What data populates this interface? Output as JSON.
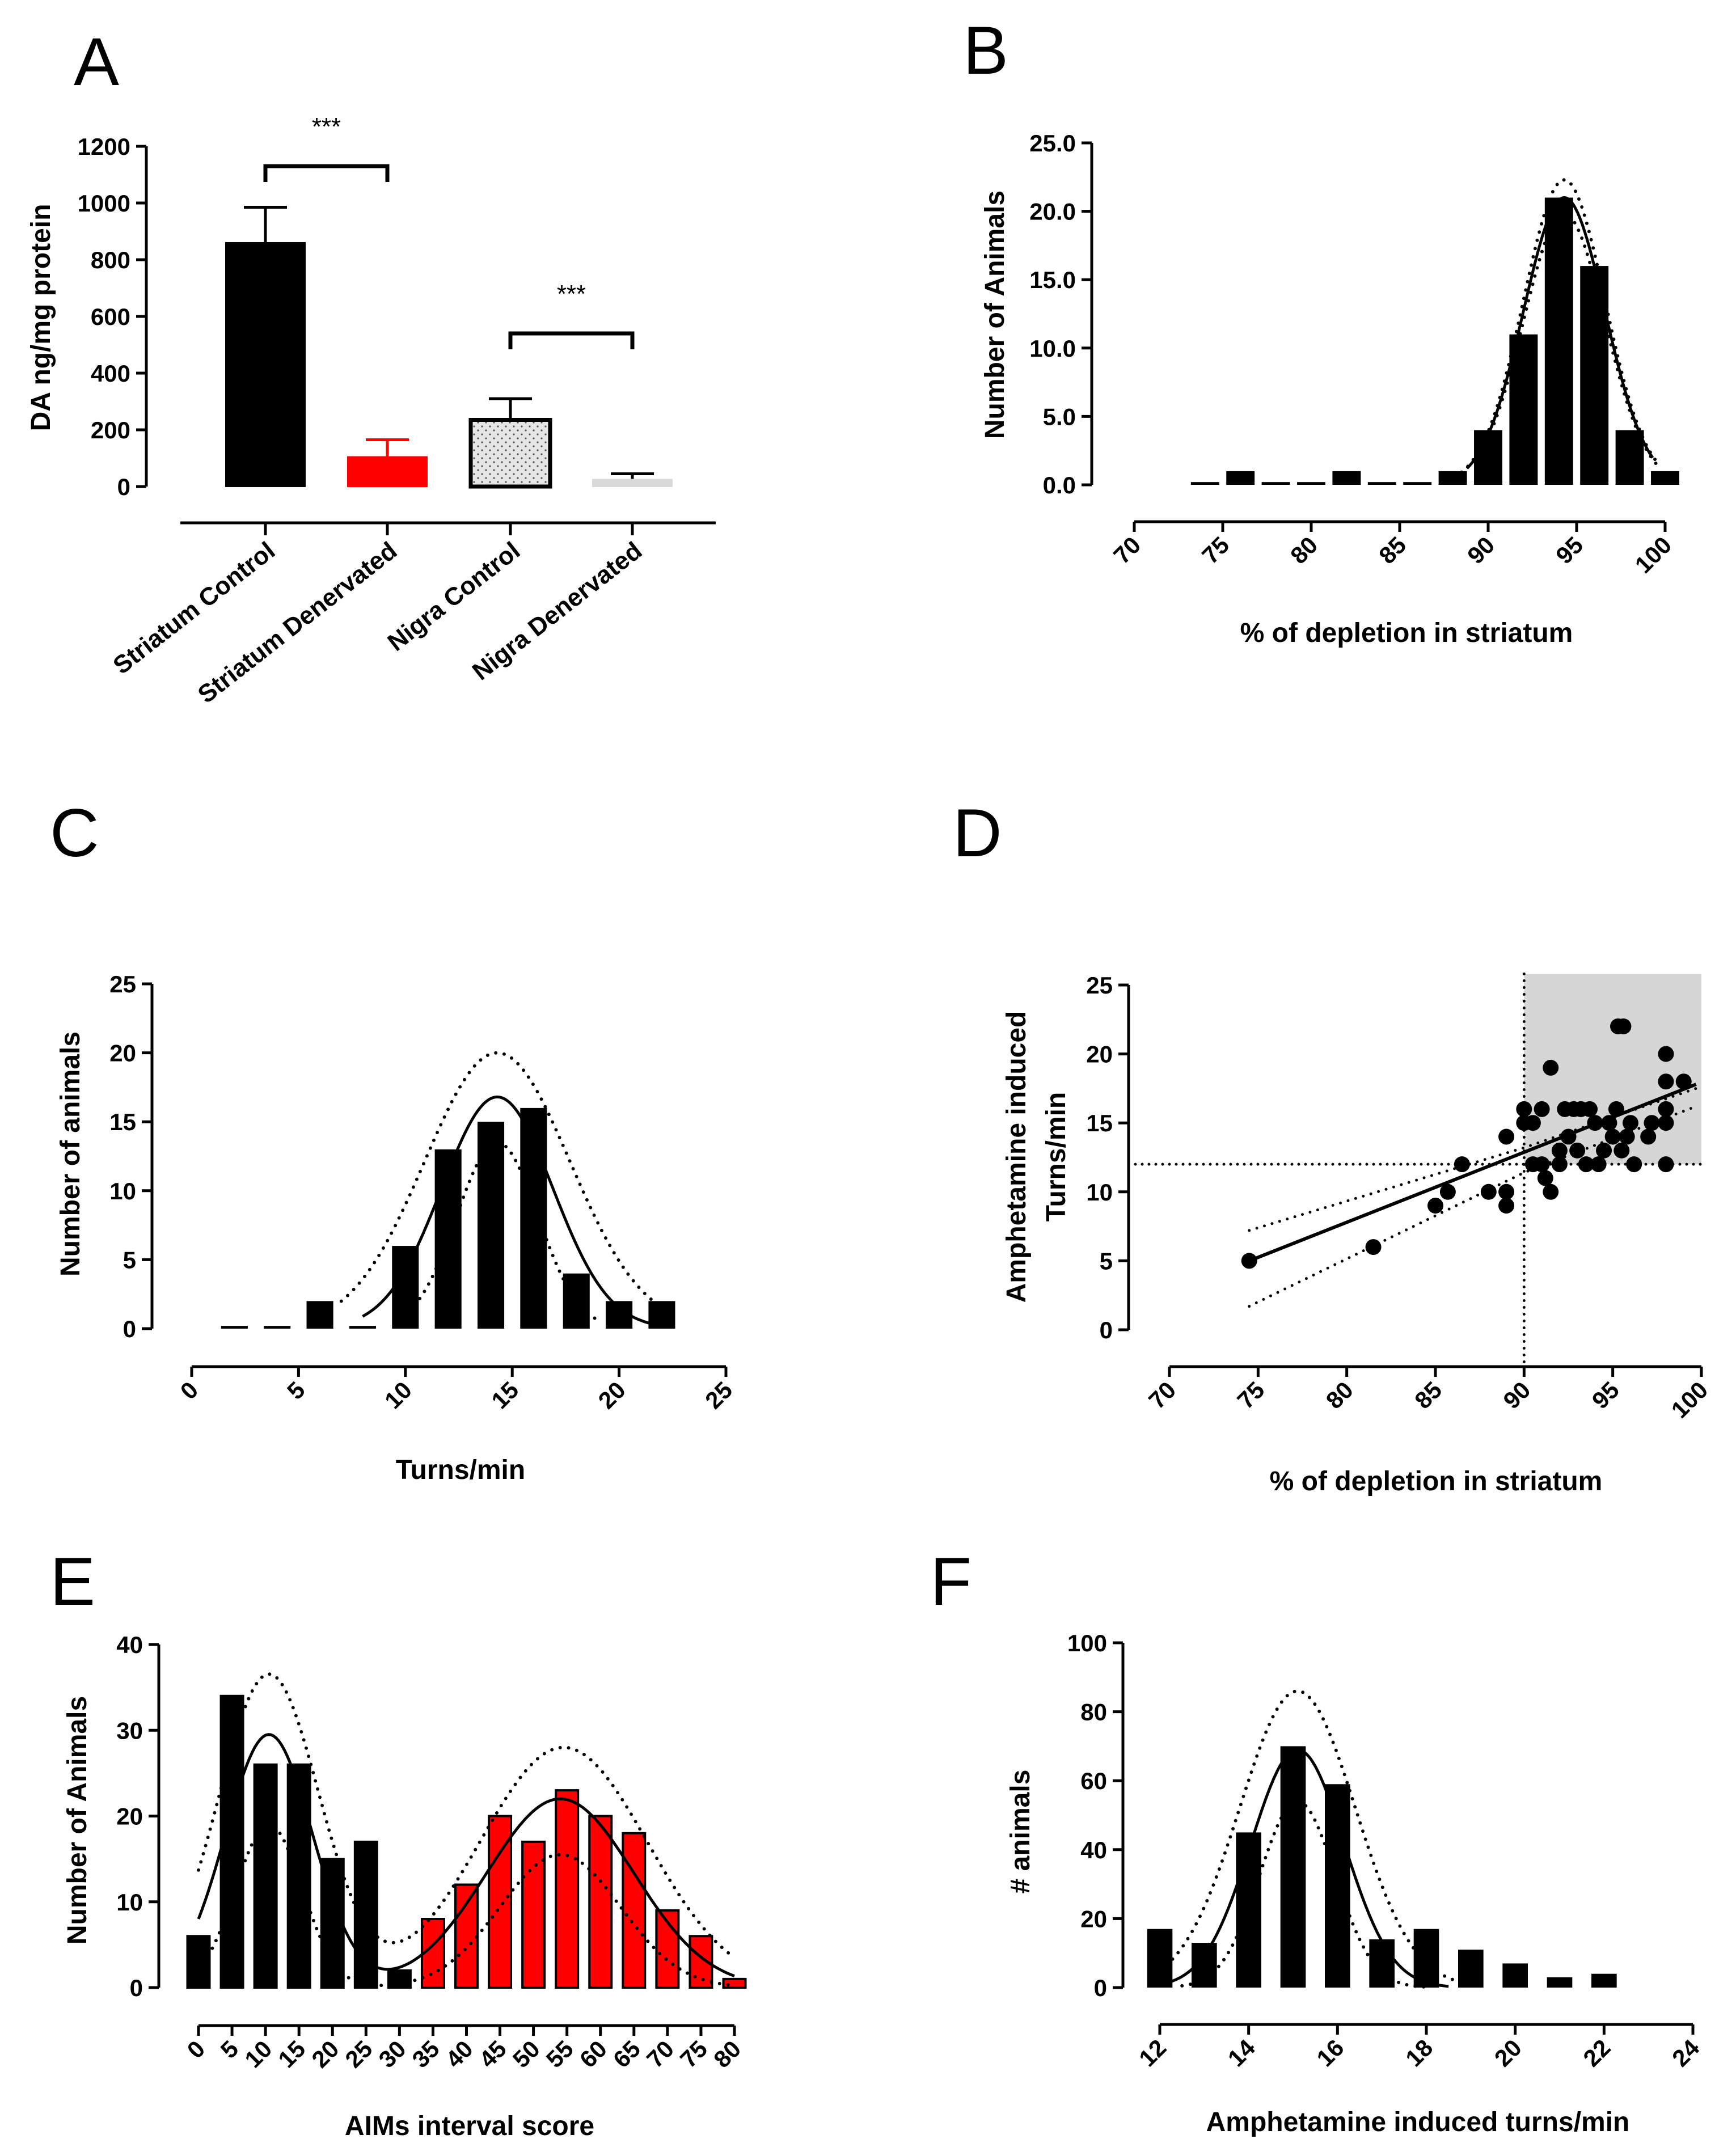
{
  "panel_letters": [
    "A",
    "B",
    "C",
    "D",
    "E",
    "F"
  ],
  "colors": {
    "black": "#000000",
    "red": "#ff0000",
    "gray_bar": "#d9d9d9",
    "shade": "#d6d6d6",
    "stipple": "#dddddd"
  },
  "chart_data": [
    {
      "id": "A",
      "type": "bar",
      "title": "",
      "xlabel": "",
      "ylabel": "DA ng/mg protein",
      "categories": [
        "Striatum Control",
        "Striatum Denervated",
        "Nigra Control",
        "Nigra Denervated"
      ],
      "values": [
        860,
        105,
        235,
        25
      ],
      "errors": [
        125,
        60,
        75,
        20
      ],
      "bar_colors": [
        "#000000",
        "#ff0000",
        "#dddddd",
        "#d9d9d9"
      ],
      "ylim": [
        0,
        1200
      ],
      "yticks": [
        "0",
        "200",
        "400",
        "600",
        "800",
        "1000",
        "1200"
      ],
      "significance": [
        {
          "from": "Striatum Control",
          "to": "Striatum Denervated",
          "label": "***",
          "bracket_value": 1130
        },
        {
          "from": "Nigra Control",
          "to": "Nigra Denervated",
          "label": "***",
          "bracket_value": 540
        }
      ]
    },
    {
      "id": "B",
      "type": "bar",
      "xlabel": "% of depletion in striatum",
      "ylabel": "Number of Animals",
      "x": [
        74,
        76,
        78,
        80,
        82,
        84,
        86,
        88,
        90,
        92,
        94,
        96,
        98,
        100
      ],
      "values": [
        0.2,
        1,
        0.2,
        0.2,
        1,
        0.2,
        0.2,
        1,
        4,
        11,
        21,
        16,
        4,
        1
      ],
      "xlim": [
        70,
        100
      ],
      "ylim": [
        0,
        25
      ],
      "xticks": [
        "70",
        "75",
        "80",
        "85",
        "90",
        "95",
        "100"
      ],
      "yticks": [
        "0.0",
        "5.0",
        "10.0",
        "15.0",
        "20.0",
        "25.0"
      ],
      "fit": {
        "model": "gaussian",
        "amplitude": 21,
        "mean": 94.3,
        "sd": 2.3,
        "style": "solid"
      },
      "fit_band": {
        "upper_amplitude": 22.3,
        "lower_amplitude": 19.8,
        "style": "dotted"
      }
    },
    {
      "id": "C",
      "type": "bar",
      "xlabel": "Turns/min",
      "ylabel": "Number of animals",
      "x": [
        2,
        4,
        6,
        8,
        10,
        12,
        14,
        16,
        18,
        20,
        22
      ],
      "values": [
        0.2,
        0.2,
        2,
        0.2,
        6,
        13,
        15,
        16,
        4,
        2,
        2
      ],
      "xlim": [
        0,
        25
      ],
      "ylim": [
        0,
        25
      ],
      "xticks": [
        "0",
        "5",
        "10",
        "15",
        "20",
        "25"
      ],
      "yticks": [
        "0",
        "5",
        "10",
        "15",
        "20",
        "25"
      ],
      "fit": {
        "model": "gaussian",
        "amplitude": 16.8,
        "mean": 14.3,
        "sd": 2.6,
        "style": "solid"
      },
      "fit_band": {
        "upper_amplitude": 20,
        "upper_sd": 3.4,
        "lower_amplitude": 13.5,
        "lower_sd": 1.9,
        "style": "dotted"
      }
    },
    {
      "id": "D",
      "type": "scatter",
      "xlabel": "% of depletion in striatum",
      "ylabel": [
        "Amphetamine induced",
        "Turns/min"
      ],
      "xlim": [
        70,
        100
      ],
      "ylim": [
        0,
        25
      ],
      "xticks": [
        "70",
        "75",
        "80",
        "85",
        "90",
        "95",
        "100"
      ],
      "yticks": [
        "0",
        "5",
        "10",
        "15",
        "20",
        "25"
      ],
      "points": [
        [
          74.5,
          5
        ],
        [
          81.5,
          6
        ],
        [
          85,
          9
        ],
        [
          85.7,
          10
        ],
        [
          86.5,
          12
        ],
        [
          88,
          10
        ],
        [
          89,
          9
        ],
        [
          89,
          10
        ],
        [
          89,
          14
        ],
        [
          90,
          15
        ],
        [
          90,
          16
        ],
        [
          90.5,
          12
        ],
        [
          90.5,
          15
        ],
        [
          91,
          12
        ],
        [
          91,
          16
        ],
        [
          91.2,
          11
        ],
        [
          91.5,
          19
        ],
        [
          91.5,
          10
        ],
        [
          92,
          13
        ],
        [
          92,
          12
        ],
        [
          92.3,
          16
        ],
        [
          92.5,
          14
        ],
        [
          92.8,
          16
        ],
        [
          93,
          13
        ],
        [
          93.2,
          16
        ],
        [
          93.5,
          12
        ],
        [
          93.7,
          16
        ],
        [
          94,
          15
        ],
        [
          94.2,
          12
        ],
        [
          94.5,
          13
        ],
        [
          94.8,
          15
        ],
        [
          95,
          14
        ],
        [
          95.2,
          16
        ],
        [
          95.3,
          22
        ],
        [
          95.6,
          22
        ],
        [
          95.5,
          13
        ],
        [
          95.8,
          14
        ],
        [
          96,
          15
        ],
        [
          96.2,
          12
        ],
        [
          97,
          14
        ],
        [
          97.2,
          15
        ],
        [
          98,
          12
        ],
        [
          98,
          15
        ],
        [
          98,
          16
        ],
        [
          98,
          18
        ],
        [
          98,
          20
        ],
        [
          99,
          18
        ]
      ],
      "regression": {
        "x1": 74.5,
        "y1": 5,
        "x2": 99.7,
        "y2": 17.8
      },
      "confidence_band": {
        "upper": [
          [
            74.5,
            7.2
          ],
          [
            90,
            13.2
          ],
          [
            99.7,
            17.5
          ]
        ],
        "lower": [
          [
            74.5,
            1.7
          ],
          [
            90,
            11.4
          ],
          [
            99.7,
            16.2
          ]
        ]
      },
      "threshold_lines": {
        "x": 90,
        "y": 12
      },
      "shaded_region": {
        "x": [
          90,
          100
        ],
        "y": [
          12,
          25.8
        ]
      }
    },
    {
      "id": "E",
      "type": "bar",
      "xlabel": "AIMs interval score",
      "ylabel": "Number of Animals",
      "x": [
        0,
        5,
        10,
        15,
        20,
        25,
        30,
        35,
        40,
        45,
        50,
        55,
        60,
        65,
        70,
        75,
        80
      ],
      "values": [
        6,
        34,
        26,
        26,
        15,
        17,
        2,
        8,
        12,
        20,
        17,
        23,
        20,
        18,
        9,
        6,
        1
      ],
      "bar_colors": [
        "#000000",
        "#000000",
        "#000000",
        "#000000",
        "#000000",
        "#000000",
        "#000000",
        "#ff0000",
        "#ff0000",
        "#ff0000",
        "#ff0000",
        "#ff0000",
        "#ff0000",
        "#ff0000",
        "#ff0000",
        "#ff0000",
        "#ff0000"
      ],
      "xlim": [
        0,
        80
      ],
      "ylim": [
        0,
        40
      ],
      "xticks": [
        "0",
        "5",
        "10",
        "15",
        "20",
        "25",
        "30",
        "35",
        "40",
        "45",
        "50",
        "55",
        "60",
        "65",
        "70",
        "75",
        "80"
      ],
      "yticks": [
        "0",
        "10",
        "20",
        "30",
        "40"
      ],
      "fit": {
        "model": "two_gaussians",
        "components": [
          {
            "amplitude": 29.5,
            "mean": 10.5,
            "sd": 6.5
          },
          {
            "amplitude": 22,
            "mean": 54,
            "sd": 11
          }
        ],
        "style": "solid"
      },
      "fit_band": {
        "upper": [
          {
            "amplitude": 36.5,
            "mean": 10.5,
            "sd": 7.5
          },
          {
            "amplitude": 28,
            "mean": 54.5,
            "sd": 12.5
          }
        ],
        "lower": [
          {
            "amplitude": 19,
            "mean": 10.5,
            "sd": 5
          },
          {
            "amplitude": 15.5,
            "mean": 54,
            "sd": 9
          }
        ],
        "style": "dotted"
      }
    },
    {
      "id": "F",
      "type": "bar",
      "xlabel": "Amphetamine induced turns/min",
      "ylabel": "# animals",
      "x": [
        12,
        13,
        14,
        15,
        16,
        17,
        18,
        19,
        20,
        21,
        22
      ],
      "values": [
        17,
        13,
        45,
        70,
        59,
        14,
        17,
        11,
        7,
        3,
        4
      ],
      "xlim": [
        12,
        24
      ],
      "ylim": [
        0,
        100
      ],
      "xticks": [
        "12",
        "14",
        "16",
        "18",
        "20",
        "22",
        "24"
      ],
      "yticks": [
        "0",
        "20",
        "40",
        "60",
        "80",
        "100"
      ],
      "fit": {
        "model": "gaussian",
        "amplitude": 69,
        "mean": 15.1,
        "sd": 1.05,
        "style": "solid"
      },
      "fit_band": {
        "upper_amplitude": 86,
        "upper_sd": 1.3,
        "lower_amplitude": 54,
        "lower_sd": 0.85,
        "style": "dotted"
      }
    }
  ]
}
